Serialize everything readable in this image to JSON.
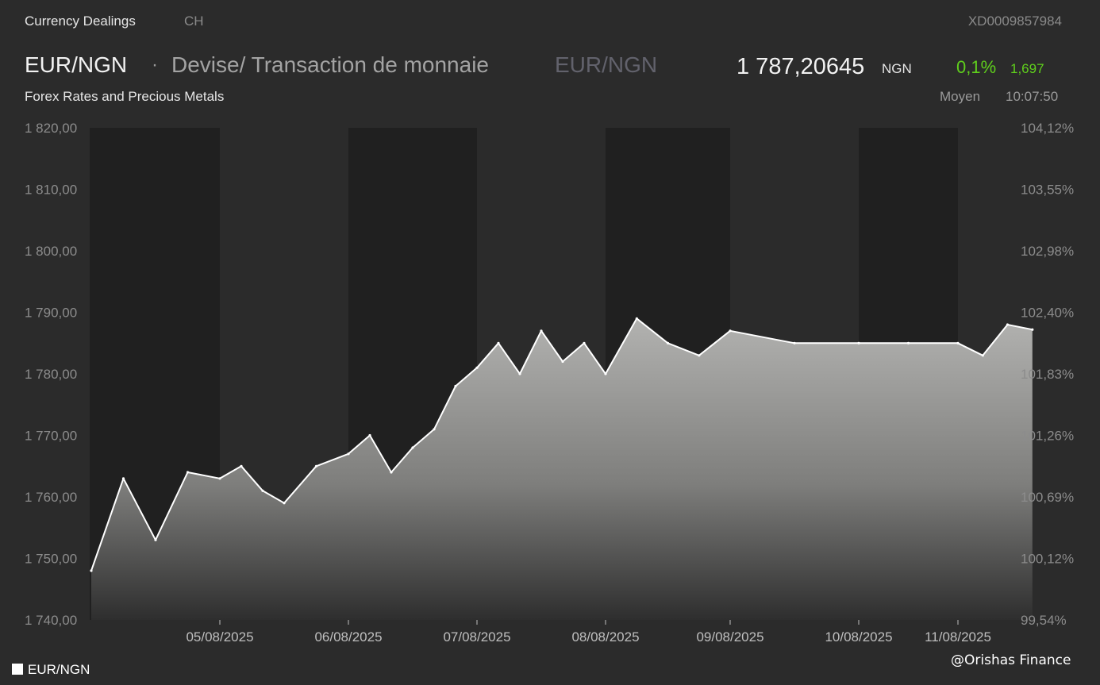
{
  "header": {
    "brand": "Currency Dealings",
    "country": "CH",
    "isin": "XD0009857984",
    "pair": "EUR/NGN",
    "separator": "·",
    "description": "Devise/ Transaction de monnaie",
    "pair_secondary": "EUR/NGN",
    "price": "1 787,20645",
    "currency": "NGN",
    "change_pct": "0,1%",
    "change_abs": "1,697",
    "subtitle": "Forex Rates and Precious Metals",
    "mode": "Moyen",
    "time": "10:07:50"
  },
  "colors": {
    "background": "#2b2b2b",
    "shaded_band": "#202020",
    "line": "#ffffff",
    "positive": "#5fcf1c"
  },
  "legend": {
    "label": "EUR/NGN"
  },
  "watermark": "@Orishas Finance",
  "chart_data": {
    "type": "area",
    "title": "",
    "xlabel": "",
    "ylabel": "",
    "ylim": [
      1740,
      1820
    ],
    "y_ticks": [
      "1 820,00",
      "1 810,00",
      "1 800,00",
      "1 790,00",
      "1 780,00",
      "1 770,00",
      "1 760,00",
      "1 750,00",
      "1 740,00"
    ],
    "y_tick_values": [
      1820,
      1810,
      1800,
      1790,
      1780,
      1770,
      1760,
      1750,
      1740
    ],
    "y2_ticks": [
      "104,12%",
      "103,55%",
      "102,98%",
      "102,40%",
      "101,83%",
      "101,26%",
      "100,69%",
      "100,12%",
      "99,54%"
    ],
    "x_ticks": [
      "05/08/2025",
      "06/08/2025",
      "07/08/2025",
      "08/08/2025",
      "09/08/2025",
      "10/08/2025",
      "11/08/2025"
    ],
    "grid": false,
    "legend_position": "bottom-left",
    "series": [
      {
        "name": "EUR/NGN",
        "x": [
          "04/08/2025 00:00",
          "04/08/2025 06:00",
          "04/08/2025 12:00",
          "04/08/2025 18:00",
          "05/08/2025 00:00",
          "05/08/2025 04:00",
          "05/08/2025 08:00",
          "05/08/2025 12:00",
          "05/08/2025 18:00",
          "06/08/2025 00:00",
          "06/08/2025 04:00",
          "06/08/2025 08:00",
          "06/08/2025 12:00",
          "06/08/2025 16:00",
          "06/08/2025 20:00",
          "07/08/2025 00:00",
          "07/08/2025 04:00",
          "07/08/2025 08:00",
          "07/08/2025 12:00",
          "07/08/2025 16:00",
          "07/08/2025 20:00",
          "08/08/2025 00:00",
          "08/08/2025 06:00",
          "08/08/2025 12:00",
          "08/08/2025 18:00",
          "09/08/2025 00:00",
          "09/08/2025 12:00",
          "10/08/2025 00:00",
          "10/08/2025 12:00",
          "11/08/2025 00:00",
          "11/08/2025 06:00",
          "11/08/2025 12:00",
          "11/08/2025 18:00"
        ],
        "values": [
          1748,
          1763,
          1753,
          1764,
          1763,
          1765,
          1761,
          1759,
          1765,
          1767,
          1770,
          1764,
          1768,
          1771,
          1778,
          1781,
          1785,
          1780,
          1787,
          1782,
          1785,
          1780,
          1789,
          1785,
          1783,
          1787,
          1785,
          1785,
          1785,
          1785,
          1783,
          1788,
          1787.2
        ]
      }
    ],
    "annotations": [
      "1 787,20645 NGN",
      "0,1%",
      "1,697"
    ]
  }
}
